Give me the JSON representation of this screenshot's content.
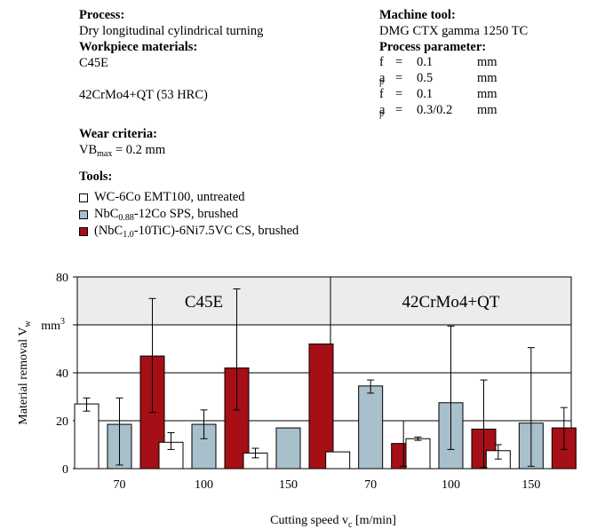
{
  "process": {
    "heading": "Process:",
    "value": "Dry longitudinal cylindrical turning"
  },
  "workpiece": {
    "heading": "Workpiece materials:",
    "materials": [
      "C45E",
      "42CrMo4+QT (53 HRC)"
    ]
  },
  "wear": {
    "heading": "Wear criteria:",
    "symbol": "VB",
    "subscript": "max",
    "value": " = 0.2 mm"
  },
  "tools": {
    "heading": "Tools:",
    "items": [
      {
        "pre": "WC-6Co EMT100, untreated",
        "sub": "",
        "post": "",
        "color": "#ffffff"
      },
      {
        "pre": "NbC",
        "sub": "0.88",
        "post": "-12Co SPS, brushed",
        "color": "#a8bfcc"
      },
      {
        "pre": "(NbC",
        "sub": "1.0",
        "post": "-10TiC)-6Ni7.5VC CS, brushed",
        "color": "#a50f15"
      }
    ]
  },
  "machine": {
    "heading": "Machine tool:",
    "value": "DMG CTX gamma 1250 TC"
  },
  "params": {
    "heading": "Process parameter:",
    "rows": [
      {
        "sym": "f",
        "sub": "",
        "eq": "=",
        "val": "0.1",
        "unit": "mm"
      },
      {
        "sym": "a",
        "sub": "p",
        "eq": "=",
        "val": "0.5",
        "unit": "mm"
      },
      {
        "sym": "f",
        "sub": "",
        "eq": "=",
        "val": "0.1",
        "unit": "mm"
      },
      {
        "sym": "a",
        "sub": "p",
        "eq": "=",
        "val": "0.3/0.2",
        "unit": "mm"
      }
    ]
  },
  "chart_data": {
    "type": "bar",
    "ylabel_main": "Material removal V",
    "ylabel_sub": "w",
    "yunit": "mm",
    "yunit_sup": "3",
    "xlabel_main": "Cutting speed v",
    "xlabel_sub": "c",
    "xlabel_post": " [m/min]",
    "ylim": [
      0,
      80
    ],
    "yticks": [
      0,
      20,
      40,
      60,
      80
    ],
    "ytick_labels": [
      "0",
      "20",
      "40",
      "",
      "80"
    ],
    "grid": true,
    "colors": [
      "#ffffff",
      "#a8bfcc",
      "#a50f15"
    ],
    "panels": [
      {
        "title": "C45E",
        "categories": [
          "70",
          "100",
          "150"
        ],
        "series": [
          {
            "values": [
              27,
              11,
              6.5
            ],
            "err_low": [
              24,
              8,
              4.5
            ],
            "err_high": [
              29.5,
              15,
              8.5
            ]
          },
          {
            "values": [
              18.5,
              18.5,
              17
            ],
            "err_low": [
              1.5,
              12.5,
              null
            ],
            "err_high": [
              29.5,
              24.5,
              null
            ]
          },
          {
            "values": [
              47,
              42,
              52
            ],
            "err_low": [
              23.5,
              24.5,
              null
            ],
            "err_high": [
              71,
              75,
              null
            ]
          }
        ]
      },
      {
        "title": "42CrMo4+QT",
        "categories": [
          "70",
          "100",
          "150"
        ],
        "series": [
          {
            "values": [
              7,
              12.5,
              7.5
            ],
            "err_low": [
              null,
              11.8,
              4
            ],
            "err_high": [
              null,
              13.2,
              10
            ]
          },
          {
            "values": [
              34.5,
              27.5,
              19
            ],
            "err_low": [
              31.5,
              8,
              1
            ],
            "err_high": [
              37,
              59.5,
              50.5
            ]
          },
          {
            "values": [
              10.5,
              16.5,
              17
            ],
            "err_low": [
              1,
              0.5,
              8
            ],
            "err_high": [
              20,
              37,
              25.5
            ]
          }
        ]
      }
    ]
  }
}
